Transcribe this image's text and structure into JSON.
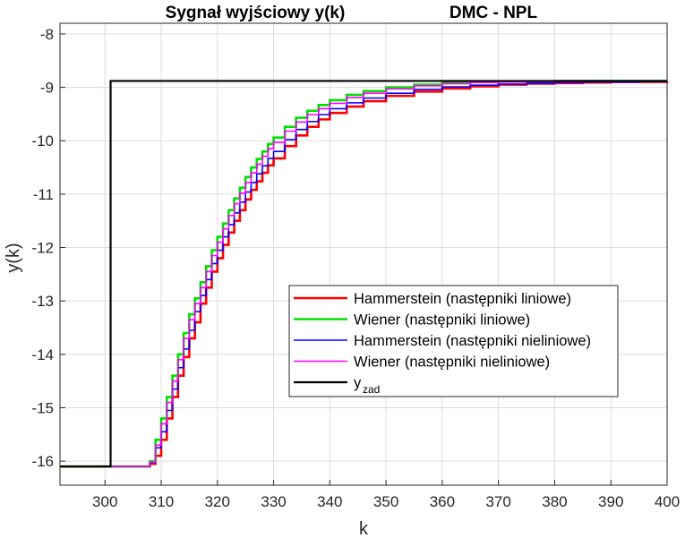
{
  "chart_data": {
    "type": "line",
    "title_left": "Sygnał wyjściowy y(k)",
    "title_right": "DMC - NPL",
    "xlabel": "k",
    "ylabel": "y(k)",
    "xlim": [
      292,
      400
    ],
    "ylim": [
      -16.45,
      -7.8
    ],
    "xticks": [
      300,
      310,
      320,
      330,
      340,
      350,
      360,
      370,
      380,
      390,
      400
    ],
    "yticks": [
      -8,
      -9,
      -10,
      -11,
      -12,
      -13,
      -14,
      -15,
      -16
    ],
    "grid": true,
    "legend_position": "center-right",
    "series": [
      {
        "name": "Hammerstein (następniki liniowe)",
        "color": "#ff0000",
        "width": 2.6,
        "x": [
          292,
          307,
          308,
          309,
          310,
          311,
          312,
          313,
          314,
          315,
          316,
          317,
          318,
          319,
          320,
          321,
          322,
          323,
          324,
          325,
          326,
          327,
          328,
          329,
          330,
          332,
          334,
          336,
          338,
          340,
          343,
          346,
          350,
          355,
          360,
          365,
          370,
          375,
          380,
          385,
          390,
          395,
          400
        ],
        "y": [
          -16.1,
          -16.1,
          -16.05,
          -15.9,
          -15.6,
          -15.2,
          -14.8,
          -14.4,
          -14.05,
          -13.7,
          -13.4,
          -13.05,
          -12.75,
          -12.45,
          -12.2,
          -11.95,
          -11.72,
          -11.5,
          -11.3,
          -11.1,
          -10.92,
          -10.76,
          -10.6,
          -10.46,
          -10.33,
          -10.1,
          -9.9,
          -9.74,
          -9.6,
          -9.48,
          -9.36,
          -9.26,
          -9.16,
          -9.08,
          -9.02,
          -8.98,
          -8.95,
          -8.93,
          -8.92,
          -8.91,
          -8.9,
          -8.9,
          -8.89
        ]
      },
      {
        "name": "Wiener (następniki liniowe)",
        "color": "#00e000",
        "width": 2.6,
        "x": [
          292,
          307,
          308,
          309,
          310,
          311,
          312,
          313,
          314,
          315,
          316,
          317,
          318,
          319,
          320,
          321,
          322,
          323,
          324,
          325,
          326,
          327,
          328,
          329,
          330,
          332,
          334,
          336,
          338,
          340,
          343,
          346,
          350,
          355,
          360,
          365,
          370,
          375,
          380,
          385,
          390,
          395,
          400
        ],
        "y": [
          -16.1,
          -16.1,
          -16.0,
          -15.6,
          -15.2,
          -14.8,
          -14.4,
          -14.0,
          -13.6,
          -13.25,
          -12.95,
          -12.65,
          -12.35,
          -12.05,
          -11.8,
          -11.55,
          -11.3,
          -11.08,
          -10.88,
          -10.68,
          -10.5,
          -10.34,
          -10.2,
          -10.06,
          -9.94,
          -9.74,
          -9.57,
          -9.44,
          -9.33,
          -9.24,
          -9.14,
          -9.07,
          -9.0,
          -8.95,
          -8.92,
          -8.9,
          -8.89,
          -8.89,
          -8.88,
          -8.88,
          -8.88,
          -8.88,
          -8.88
        ]
      },
      {
        "name": "Hammerstein (następniki nieliniowe)",
        "color": "#0000ff",
        "width": 1.6,
        "x": [
          292,
          307,
          308,
          309,
          310,
          311,
          312,
          313,
          314,
          315,
          316,
          317,
          318,
          319,
          320,
          321,
          322,
          323,
          324,
          325,
          326,
          327,
          328,
          329,
          330,
          332,
          334,
          336,
          338,
          340,
          343,
          346,
          350,
          355,
          360,
          365,
          370,
          375,
          380,
          385,
          390,
          395,
          400
        ],
        "y": [
          -16.1,
          -16.1,
          -16.03,
          -15.75,
          -15.45,
          -15.05,
          -14.65,
          -14.25,
          -13.9,
          -13.55,
          -13.2,
          -12.9,
          -12.6,
          -12.3,
          -12.05,
          -11.8,
          -11.57,
          -11.35,
          -11.15,
          -10.96,
          -10.78,
          -10.62,
          -10.47,
          -10.33,
          -10.2,
          -9.98,
          -9.79,
          -9.64,
          -9.51,
          -9.4,
          -9.29,
          -9.2,
          -9.11,
          -9.04,
          -8.99,
          -8.96,
          -8.94,
          -8.92,
          -8.91,
          -8.9,
          -8.9,
          -8.89,
          -8.89
        ]
      },
      {
        "name": "Wiener (następniki nieliniowe)",
        "color": "#ff00ff",
        "width": 1.6,
        "x": [
          292,
          307,
          308,
          309,
          310,
          311,
          312,
          313,
          314,
          315,
          316,
          317,
          318,
          319,
          320,
          321,
          322,
          323,
          324,
          325,
          326,
          327,
          328,
          329,
          330,
          332,
          334,
          336,
          338,
          340,
          343,
          346,
          350,
          355,
          360,
          365,
          370,
          375,
          380,
          385,
          390,
          395,
          400
        ],
        "y": [
          -16.1,
          -16.1,
          -16.02,
          -15.7,
          -15.3,
          -14.9,
          -14.5,
          -14.1,
          -13.7,
          -13.35,
          -13.05,
          -12.75,
          -12.45,
          -12.15,
          -11.9,
          -11.65,
          -11.4,
          -11.18,
          -10.98,
          -10.78,
          -10.6,
          -10.44,
          -10.29,
          -10.15,
          -10.03,
          -9.82,
          -9.65,
          -9.51,
          -9.4,
          -9.3,
          -9.19,
          -9.11,
          -9.03,
          -8.97,
          -8.93,
          -8.91,
          -8.9,
          -8.89,
          -8.89,
          -8.88,
          -8.88,
          -8.88,
          -8.88
        ]
      },
      {
        "name": "y",
        "name_sub": "zad",
        "color": "#000000",
        "width": 2.2,
        "x": [
          292,
          301,
          301,
          400
        ],
        "y": [
          -16.1,
          -16.1,
          -8.88,
          -8.88
        ]
      }
    ]
  }
}
